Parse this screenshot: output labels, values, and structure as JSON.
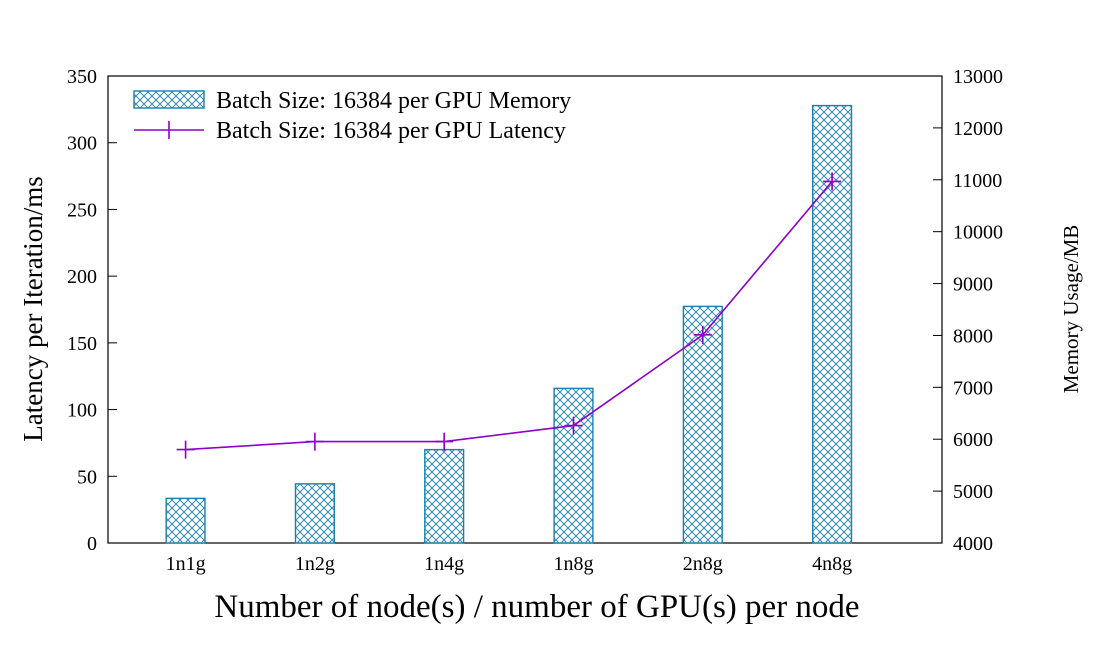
{
  "chart_data": {
    "type": "bar+line",
    "categories": [
      "1n1g",
      "1n2g",
      "1n4g",
      "1n8g",
      "2n8g",
      "4n8g"
    ],
    "xlabel": "Number of node(s) / number of GPU(s) per node",
    "ylabel": "Latency per Iteration/ms",
    "y2label": "Memory Usage/MB",
    "ylim": [
      0,
      350
    ],
    "y2lim": [
      4000,
      13000
    ],
    "yticks": [
      0,
      50,
      100,
      150,
      200,
      250,
      300,
      350
    ],
    "y2ticks": [
      4000,
      5000,
      6000,
      7000,
      8000,
      9000,
      10000,
      11000,
      12000,
      13000
    ],
    "series": [
      {
        "name": "Batch Size: 16384 per GPU Memory",
        "kind": "bar",
        "axis": "right",
        "color": "#1a7fb0",
        "values": [
          4860,
          5140,
          5800,
          6980,
          8560,
          12430
        ]
      },
      {
        "name": "Batch Size: 16384 per GPU Latency",
        "kind": "line",
        "axis": "left",
        "color": "#8e00c8",
        "values": [
          70,
          76,
          76,
          88,
          156,
          271
        ]
      }
    ],
    "legend_position": "top-left",
    "grid": false
  }
}
